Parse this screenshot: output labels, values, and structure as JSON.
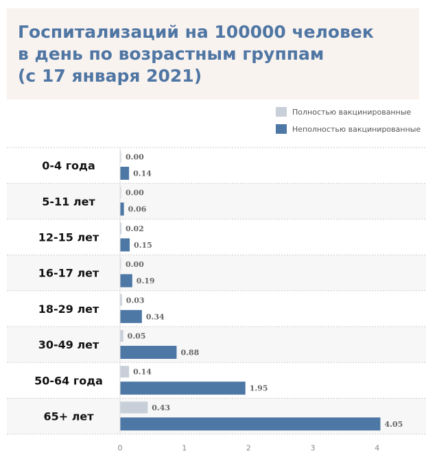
{
  "chart_data": {
    "type": "bar",
    "orientation": "horizontal",
    "title": "Госпитализаций на 100000 человек\nв день по возрастным группам\n(с 17 января  2021)",
    "categories": [
      "0-4 года",
      "5-11 лет",
      "12-15 лет",
      "16-17 лет",
      "18-29 лет",
      "30-49 лет",
      "50-64 года",
      "65+ лет"
    ],
    "series": [
      {
        "name": "Полностью вакцинированные",
        "color": "#c8cfd9",
        "values": [
          0.0,
          0.0,
          0.02,
          0.0,
          0.03,
          0.05,
          0.14,
          0.43
        ],
        "labels": [
          "0.00",
          "0.00",
          "0.02",
          "0.00",
          "0.03",
          "0.05",
          "0.14",
          "0.43"
        ]
      },
      {
        "name": "Неполностью вакцинированные",
        "color": "#4d77a5",
        "values": [
          0.14,
          0.06,
          0.15,
          0.19,
          0.34,
          0.88,
          1.95,
          4.05
        ],
        "labels": [
          "0.14",
          "0.06",
          "0.15",
          "0.19",
          "0.34",
          "0.88",
          "1.95",
          "4.05"
        ]
      }
    ],
    "xticks": [
      "0",
      "1",
      "2",
      "3",
      "4"
    ],
    "xlim": [
      0,
      4.6
    ],
    "legend": "top-right"
  }
}
